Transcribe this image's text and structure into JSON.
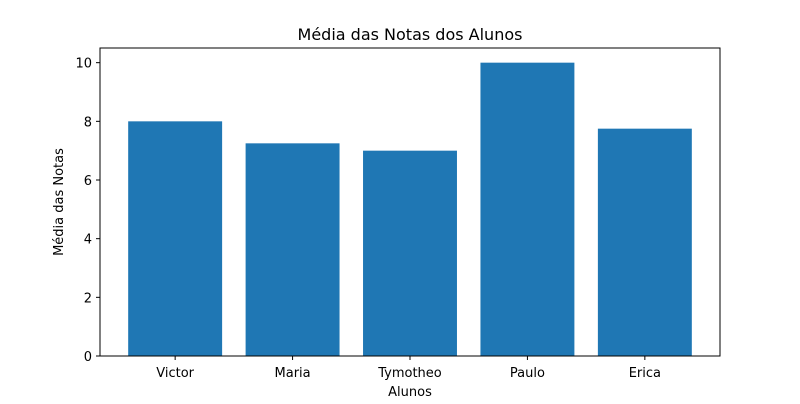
{
  "chart_data": {
    "type": "bar",
    "title": "Média das Notas dos Alunos",
    "xlabel": "Alunos",
    "ylabel": "Média das Notas",
    "categories": [
      "Victor",
      "Maria",
      "Tymotheo",
      "Paulo",
      "Erica"
    ],
    "values": [
      8.0,
      7.25,
      7.0,
      10.0,
      7.75
    ],
    "ylim": [
      0,
      10.5
    ],
    "yticks": [
      0,
      2,
      4,
      6,
      8,
      10
    ],
    "grid": false,
    "bar_color": "#1f77b4"
  }
}
